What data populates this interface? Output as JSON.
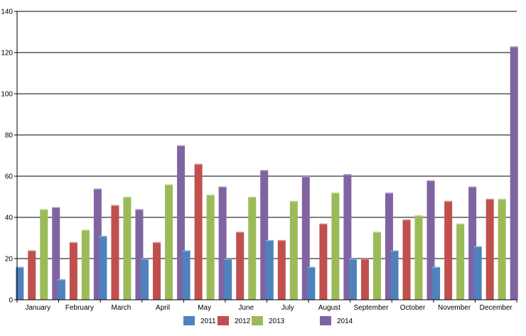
{
  "chart_data": {
    "type": "bar",
    "title": "",
    "xlabel": "",
    "ylabel": "",
    "ylim": [
      0,
      140
    ],
    "yticks": [
      0,
      20,
      40,
      60,
      80,
      100,
      120,
      140
    ],
    "grid": true,
    "legend_position": "bottom",
    "categories": [
      "January",
      "February",
      "March",
      "April",
      "May",
      "June",
      "July",
      "August",
      "September",
      "October",
      "November",
      "December"
    ],
    "series": [
      {
        "name": "2011",
        "color": "#4f81bd",
        "values": [
          16,
          10,
          31,
          20,
          24,
          20,
          29,
          16,
          20,
          24,
          16,
          26
        ]
      },
      {
        "name": "2012",
        "color": "#c0504d",
        "values": [
          24,
          28,
          46,
          28,
          66,
          33,
          29,
          37,
          20,
          39,
          48,
          49
        ]
      },
      {
        "name": "2013",
        "color": "#9bbb59",
        "values": [
          44,
          34,
          50,
          56,
          51,
          50,
          48,
          52,
          33,
          41,
          37,
          49
        ]
      },
      {
        "name": "2014",
        "color": "#8064a2",
        "values": [
          45,
          54,
          44,
          75,
          55,
          63,
          60,
          61,
          52,
          58,
          55,
          123
        ]
      }
    ]
  }
}
